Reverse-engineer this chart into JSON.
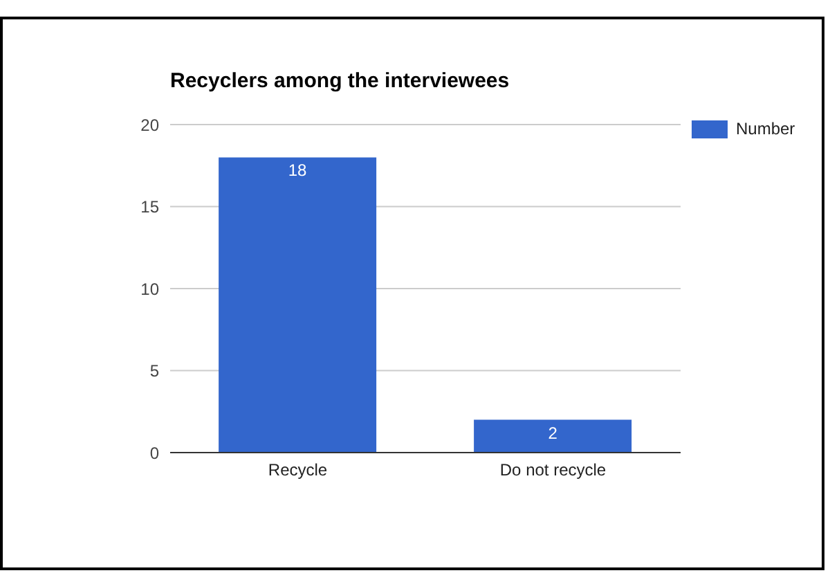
{
  "chart_data": {
    "type": "bar",
    "title": "Recyclers among the interviewees",
    "categories": [
      "Recycle",
      "Do not recycle"
    ],
    "series": [
      {
        "name": "Number",
        "color": "#3366cc",
        "values": [
          18,
          2
        ]
      }
    ],
    "ylim": [
      0,
      20
    ],
    "yticks": [
      0,
      5,
      10,
      15,
      20
    ],
    "grid": "y",
    "legend": "top right",
    "data_labels": true
  }
}
